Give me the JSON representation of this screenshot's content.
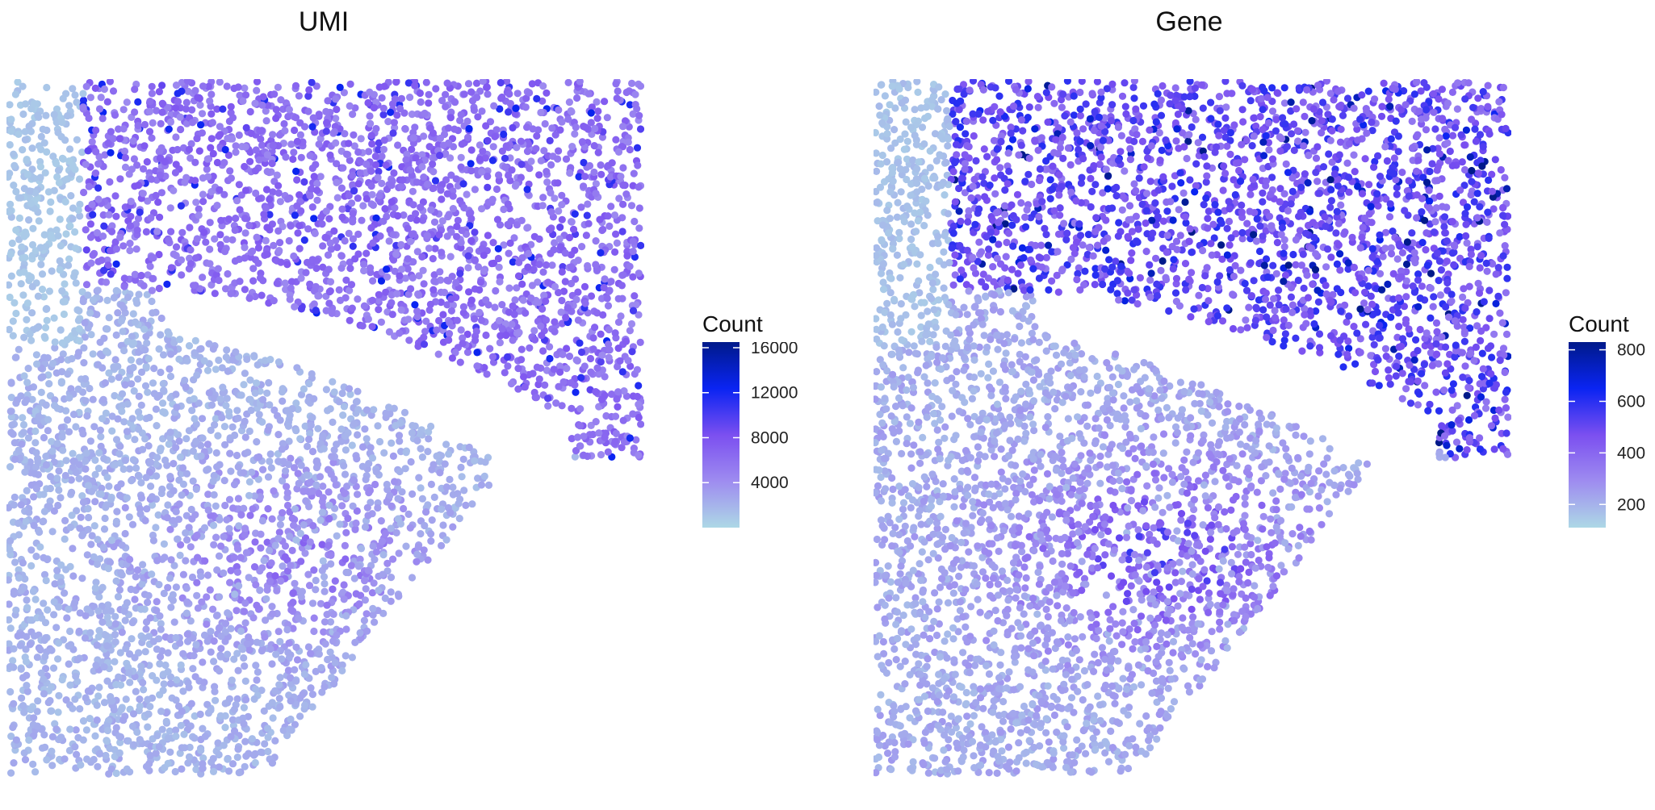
{
  "chart_data": [
    {
      "type": "scatter",
      "title": "UMI",
      "subtitle": "",
      "xlabel": "",
      "ylabel": "",
      "grid": false,
      "legend": {
        "title": "Count",
        "placement": "right",
        "min": 0,
        "max": 16500,
        "ticks": [
          4000,
          8000,
          12000,
          16000
        ],
        "tick_labels": [
          "4000",
          "8000",
          "12000",
          "16000"
        ],
        "colors": [
          "#add8e6",
          "#9e8cf0",
          "#7b4ff0",
          "#0a24f2",
          "#001a8a"
        ]
      }
    },
    {
      "type": "scatter",
      "title": "Gene",
      "subtitle": "",
      "xlabel": "",
      "ylabel": "",
      "grid": false,
      "legend": {
        "title": "Count",
        "placement": "right",
        "min": 110,
        "max": 830,
        "ticks": [
          200,
          400,
          600,
          800
        ],
        "tick_labels": [
          "200",
          "400",
          "600",
          "800"
        ],
        "colors": [
          "#add8e6",
          "#9e8cf0",
          "#7b4ff0",
          "#0a24f2",
          "#001a8a"
        ]
      }
    }
  ]
}
